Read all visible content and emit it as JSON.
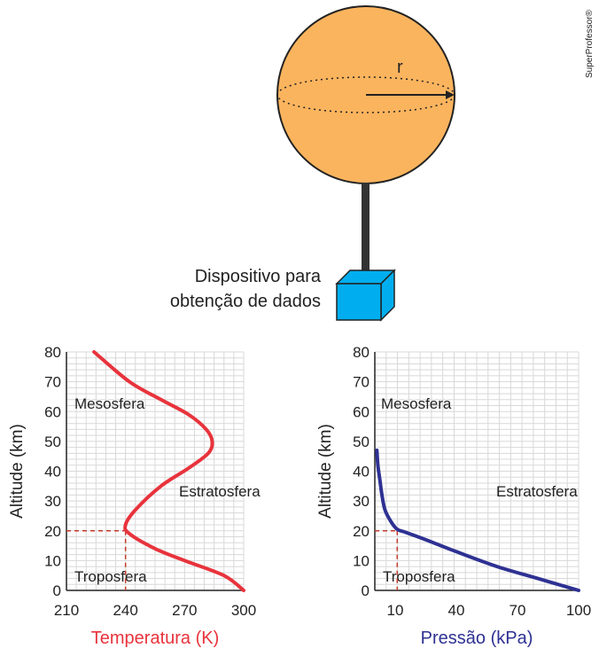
{
  "watermark": "SuperProfessor®",
  "balloon": {
    "radius_label": "r",
    "device_label_line1": "Dispositivo para",
    "device_label_line2": "obtenção de dados",
    "colors": {
      "balloon": "#fbb45e",
      "device": "#00aeef",
      "rope": "#333333"
    }
  },
  "chart_data": [
    {
      "type": "line",
      "xlabel": "Temperatura (K)",
      "ylabel": "Altitude (km)",
      "x_ticks": [
        210,
        240,
        270,
        300
      ],
      "y_ticks": [
        0,
        10,
        20,
        30,
        40,
        50,
        60,
        70,
        80
      ],
      "xlim": [
        210,
        300
      ],
      "ylim": [
        0,
        80
      ],
      "color": "#e8333c",
      "regions": [
        "Mesosfera",
        "Estratosfera",
        "Troposfera"
      ],
      "series": [
        {
          "x": [
            300,
            290,
            270,
            255,
            242,
            240,
            245,
            258,
            272,
            282,
            284,
            281,
            272,
            258,
            242,
            224
          ],
          "y": [
            0,
            5,
            10,
            14,
            19,
            22,
            27,
            35,
            41,
            46,
            50,
            54,
            59,
            64,
            70,
            80
          ]
        }
      ],
      "reference": {
        "x": 240,
        "y": 20
      }
    },
    {
      "type": "line",
      "xlabel": "Pressão (kPa)",
      "ylabel": "Altitude (km)",
      "x_ticks": [
        10,
        40,
        70,
        100
      ],
      "y_ticks": [
        0,
        10,
        20,
        30,
        40,
        50,
        60,
        70,
        80
      ],
      "xlim": [
        0,
        100
      ],
      "ylim": [
        0,
        80
      ],
      "color": "#2e3192",
      "regions": [
        "Mesosfera",
        "Estratosfera",
        "Troposfera"
      ],
      "series": [
        {
          "x": [
            100,
            80,
            60,
            40,
            25,
            15,
            11,
            8,
            5,
            3.5,
            2.5,
            1.5,
            1
          ],
          "y": [
            0,
            4,
            8,
            13,
            17,
            19.5,
            20.5,
            23,
            27,
            32,
            37,
            42,
            47
          ]
        }
      ],
      "reference": {
        "x": 11,
        "y": 20
      }
    }
  ]
}
